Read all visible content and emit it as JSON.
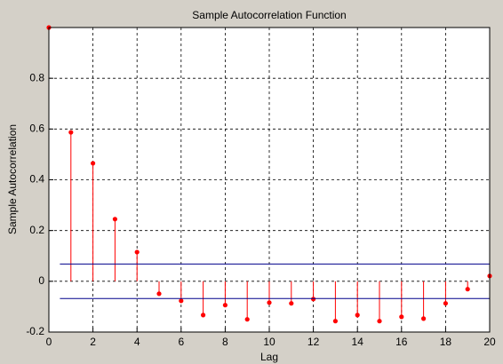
{
  "chart_data": {
    "type": "stem",
    "title": "Sample Autocorrelation Function",
    "x_label": "Lag",
    "y_label": "Sample Autocorrelation",
    "x": [
      0,
      1,
      2,
      3,
      4,
      5,
      6,
      7,
      8,
      9,
      10,
      11,
      12,
      13,
      14,
      15,
      16,
      17,
      18,
      19,
      20
    ],
    "values": [
      1,
      0.587,
      0.465,
      0.245,
      0.115,
      -0.049,
      -0.077,
      -0.133,
      -0.094,
      -0.15,
      -0.084,
      -0.087,
      -0.07,
      -0.157,
      -0.133,
      -0.157,
      -0.14,
      -0.147,
      -0.087,
      -0.031,
      0.021
    ],
    "color": "#ff0000",
    "bounds": [
      0.068,
      -0.068
    ],
    "bounds_xlim": [
      0.5,
      20
    ],
    "bounds_color": "#00008b",
    "xlim": [
      0,
      20
    ],
    "xticks": [
      0,
      2,
      4,
      6,
      8,
      10,
      12,
      14,
      16,
      18,
      20
    ],
    "ylim": [
      -0.2,
      1
    ],
    "yticks": [
      -0.2,
      0,
      0.2,
      0.4,
      0.6,
      0.8
    ],
    "grid": true
  }
}
